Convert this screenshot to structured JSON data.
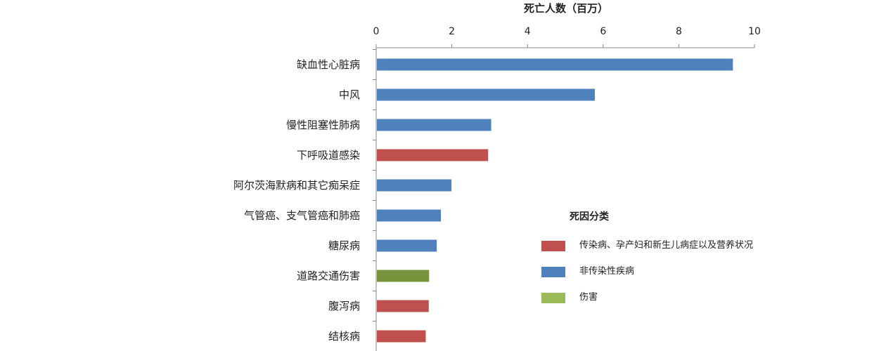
{
  "colors": {
    "communicable": "#c0504d",
    "noncommunicable": "#4f81bd",
    "injury": "#77933c",
    "injury_legend": "#9bbb59",
    "axis": "#888888",
    "text": "#222222"
  },
  "chart_data": {
    "type": "bar",
    "orientation": "horizontal",
    "title": "死亡人数（百万）",
    "xlim": [
      0,
      10
    ],
    "x_ticks": [
      "0",
      "2",
      "4",
      "6",
      "8",
      "10"
    ],
    "categories": [
      "缺血性心脏病",
      "中风",
      "慢性阻塞性肺病",
      "下呼吸道感染",
      "阿尔茨海默病和其它痴呆症",
      "气管癌、支气管癌和肺癌",
      "糖尿病",
      "道路交通伤害",
      "腹泻病",
      "结核病"
    ],
    "values": [
      9.43,
      5.78,
      3.04,
      2.96,
      1.99,
      1.71,
      1.6,
      1.4,
      1.39,
      1.31
    ],
    "groups": [
      "noncommunicable",
      "noncommunicable",
      "noncommunicable",
      "communicable",
      "noncommunicable",
      "noncommunicable",
      "noncommunicable",
      "injury",
      "communicable",
      "communicable"
    ],
    "grid": false
  },
  "legend": {
    "title": "死因分类",
    "items": [
      {
        "key": "communicable",
        "label": "传染病、孕产妇和新生儿病症以及营养状况"
      },
      {
        "key": "noncommunicable",
        "label": "非传染性疾病"
      },
      {
        "key": "injury_legend",
        "label": "伤害"
      }
    ]
  }
}
